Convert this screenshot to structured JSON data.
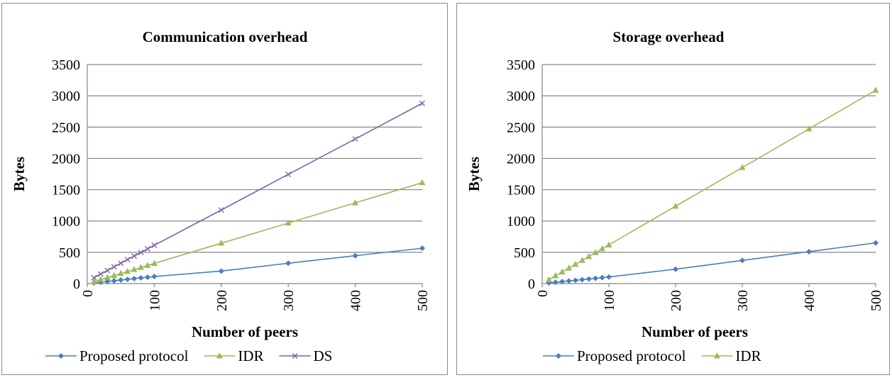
{
  "chart_data": [
    {
      "type": "line",
      "title": "Communication overhead",
      "xlabel": "Number of peers",
      "ylabel": "Bytes",
      "xlim": [
        0,
        500
      ],
      "ylim": [
        0,
        3500
      ],
      "x_ticks": [
        "0",
        "100",
        "200",
        "300",
        "400",
        "500"
      ],
      "y_ticks": [
        "0",
        "500",
        "1000",
        "1500",
        "2000",
        "2500",
        "3000",
        "3500"
      ],
      "grid": "horizontal",
      "legend_position": "bottom",
      "x": [
        10,
        20,
        30,
        40,
        50,
        60,
        70,
        80,
        90,
        100,
        200,
        300,
        400,
        500
      ],
      "series": [
        {
          "name": "Proposed protocol",
          "color": "#4a7ebb",
          "marker": "diamond",
          "values": [
            11,
            23,
            34,
            45,
            57,
            68,
            79,
            91,
            102,
            113,
            200,
            325,
            445,
            565
          ]
        },
        {
          "name": "IDR",
          "color": "#9bbb59",
          "marker": "triangle",
          "values": [
            32,
            64,
            97,
            129,
            161,
            193,
            225,
            258,
            290,
            322,
            645,
            967,
            1290,
            1612
          ]
        },
        {
          "name": "DS",
          "color": "#8064a2",
          "marker": "x",
          "values": [
            95,
            153,
            210,
            268,
            325,
            383,
            440,
            497,
            555,
            612,
            1175,
            1745,
            2310,
            2880
          ]
        }
      ]
    },
    {
      "type": "line",
      "title": "Storage overhead",
      "xlabel": "Number of peers",
      "ylabel": "Bytes",
      "xlim": [
        0,
        500
      ],
      "ylim": [
        0,
        3500
      ],
      "x_ticks": [
        "0",
        "100",
        "200",
        "300",
        "400",
        "500"
      ],
      "y_ticks": [
        "0",
        "500",
        "1000",
        "1500",
        "2000",
        "2500",
        "3000",
        "3500"
      ],
      "grid": "horizontal",
      "legend_position": "bottom",
      "x": [
        10,
        20,
        30,
        40,
        50,
        60,
        70,
        80,
        90,
        100,
        200,
        300,
        400,
        500
      ],
      "series": [
        {
          "name": "Proposed protocol",
          "color": "#4a7ebb",
          "marker": "diamond",
          "values": [
            11,
            21,
            32,
            42,
            53,
            63,
            74,
            84,
            95,
            105,
            230,
            370,
            510,
            650
          ]
        },
        {
          "name": "IDR",
          "color": "#9bbb59",
          "marker": "triangle",
          "values": [
            62,
            124,
            185,
            247,
            309,
            371,
            432,
            494,
            556,
            618,
            1236,
            1853,
            2471,
            3089
          ]
        }
      ]
    }
  ]
}
